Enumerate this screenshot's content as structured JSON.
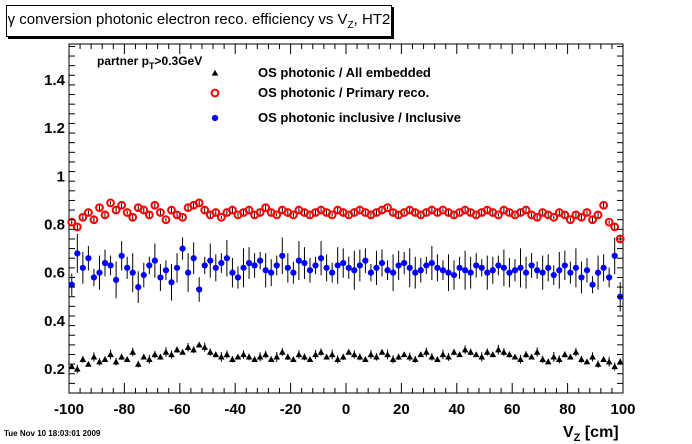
{
  "chart_data": {
    "type": "scatter",
    "title": "γ conversion photonic electron reco. efficiency vs V",
    "title_sub": "Z",
    "title_suffix": ", HT2",
    "xlabel": "V",
    "xlabel_sub": "Z",
    "xlabel_suffix": " [cm]",
    "ylabel": "",
    "xlim": [
      -100,
      100
    ],
    "ylim": [
      0.1,
      1.55
    ],
    "x_ticks": [
      -100,
      -80,
      -60,
      -40,
      -20,
      0,
      20,
      40,
      60,
      80,
      100
    ],
    "y_ticks": [
      0.2,
      0.4,
      0.6,
      0.8,
      1,
      1.2,
      1.4
    ],
    "annotation": "partner p",
    "annotation_sub": "T",
    "annotation_suffix": ">0.3GeV",
    "legend_position": "top-right",
    "x": [
      -99,
      -97,
      -95,
      -93,
      -91,
      -89,
      -87,
      -85,
      -83,
      -81,
      -79,
      -77,
      -75,
      -73,
      -71,
      -69,
      -67,
      -65,
      -63,
      -61,
      -59,
      -57,
      -55,
      -53,
      -51,
      -49,
      -47,
      -45,
      -43,
      -41,
      -39,
      -37,
      -35,
      -33,
      -31,
      -29,
      -27,
      -25,
      -23,
      -21,
      -19,
      -17,
      -15,
      -13,
      -11,
      -9,
      -7,
      -5,
      -3,
      -1,
      1,
      3,
      5,
      7,
      9,
      11,
      13,
      15,
      17,
      19,
      21,
      23,
      25,
      27,
      29,
      31,
      33,
      35,
      37,
      39,
      41,
      43,
      45,
      47,
      49,
      51,
      53,
      55,
      57,
      59,
      61,
      63,
      65,
      67,
      69,
      71,
      73,
      75,
      77,
      79,
      81,
      83,
      85,
      87,
      89,
      91,
      93,
      95,
      97,
      99
    ],
    "series": [
      {
        "name": "OS photonic / All embedded",
        "marker": "triangle",
        "color": "#000000",
        "values": [
          0.21,
          0.2,
          0.24,
          0.22,
          0.25,
          0.23,
          0.24,
          0.26,
          0.23,
          0.25,
          0.24,
          0.27,
          0.22,
          0.25,
          0.24,
          0.26,
          0.25,
          0.27,
          0.26,
          0.28,
          0.27,
          0.29,
          0.28,
          0.3,
          0.29,
          0.27,
          0.26,
          0.25,
          0.26,
          0.24,
          0.25,
          0.26,
          0.25,
          0.24,
          0.25,
          0.26,
          0.24,
          0.25,
          0.27,
          0.25,
          0.24,
          0.26,
          0.25,
          0.24,
          0.26,
          0.27,
          0.25,
          0.26,
          0.24,
          0.25,
          0.27,
          0.26,
          0.25,
          0.24,
          0.26,
          0.25,
          0.27,
          0.26,
          0.24,
          0.25,
          0.26,
          0.25,
          0.24,
          0.26,
          0.27,
          0.25,
          0.24,
          0.26,
          0.25,
          0.27,
          0.26,
          0.28,
          0.27,
          0.26,
          0.25,
          0.27,
          0.26,
          0.28,
          0.27,
          0.26,
          0.25,
          0.24,
          0.26,
          0.25,
          0.27,
          0.24,
          0.23,
          0.25,
          0.24,
          0.26,
          0.25,
          0.27,
          0.24,
          0.23,
          0.25,
          0.22,
          0.24,
          0.23,
          0.21,
          0.23
        ]
      },
      {
        "name": "OS photonic / Primary reco.",
        "marker": "open-circle",
        "color": "#ff0000",
        "values": [
          0.81,
          0.79,
          0.83,
          0.85,
          0.82,
          0.87,
          0.84,
          0.89,
          0.86,
          0.88,
          0.85,
          0.83,
          0.87,
          0.86,
          0.84,
          0.88,
          0.85,
          0.82,
          0.86,
          0.84,
          0.83,
          0.87,
          0.88,
          0.89,
          0.86,
          0.84,
          0.85,
          0.83,
          0.85,
          0.86,
          0.84,
          0.85,
          0.86,
          0.84,
          0.85,
          0.87,
          0.85,
          0.84,
          0.86,
          0.85,
          0.84,
          0.86,
          0.85,
          0.84,
          0.85,
          0.86,
          0.85,
          0.84,
          0.86,
          0.85,
          0.84,
          0.85,
          0.86,
          0.85,
          0.84,
          0.85,
          0.86,
          0.87,
          0.85,
          0.84,
          0.85,
          0.86,
          0.85,
          0.84,
          0.85,
          0.86,
          0.85,
          0.86,
          0.85,
          0.84,
          0.85,
          0.86,
          0.85,
          0.84,
          0.85,
          0.86,
          0.85,
          0.84,
          0.86,
          0.85,
          0.84,
          0.85,
          0.86,
          0.84,
          0.83,
          0.85,
          0.84,
          0.83,
          0.85,
          0.84,
          0.82,
          0.84,
          0.83,
          0.85,
          0.82,
          0.84,
          0.88,
          0.81,
          0.79,
          0.74
        ]
      },
      {
        "name": "OS photonic inclusive / Inclusive",
        "marker": "filled-circle",
        "color": "#0000ff",
        "values": [
          0.55,
          0.68,
          0.62,
          0.66,
          0.58,
          0.6,
          0.64,
          0.63,
          0.57,
          0.67,
          0.62,
          0.6,
          0.54,
          0.59,
          0.63,
          0.65,
          0.58,
          0.61,
          0.56,
          0.62,
          0.7,
          0.6,
          0.66,
          0.53,
          0.63,
          0.65,
          0.62,
          0.64,
          0.66,
          0.6,
          0.58,
          0.62,
          0.64,
          0.63,
          0.65,
          0.61,
          0.6,
          0.63,
          0.67,
          0.62,
          0.6,
          0.65,
          0.64,
          0.61,
          0.63,
          0.66,
          0.62,
          0.6,
          0.63,
          0.64,
          0.62,
          0.61,
          0.63,
          0.65,
          0.6,
          0.62,
          0.64,
          0.61,
          0.6,
          0.63,
          0.64,
          0.62,
          0.6,
          0.61,
          0.63,
          0.64,
          0.62,
          0.61,
          0.6,
          0.59,
          0.62,
          0.61,
          0.6,
          0.63,
          0.62,
          0.6,
          0.61,
          0.63,
          0.62,
          0.6,
          0.61,
          0.62,
          0.6,
          0.63,
          0.61,
          0.6,
          0.62,
          0.59,
          0.61,
          0.63,
          0.6,
          0.62,
          0.58,
          0.61,
          0.55,
          0.6,
          0.62,
          0.58,
          0.67,
          0.5
        ]
      }
    ]
  },
  "footer": {
    "timestamp": "Tue Nov 10 18:03:01 2009"
  }
}
